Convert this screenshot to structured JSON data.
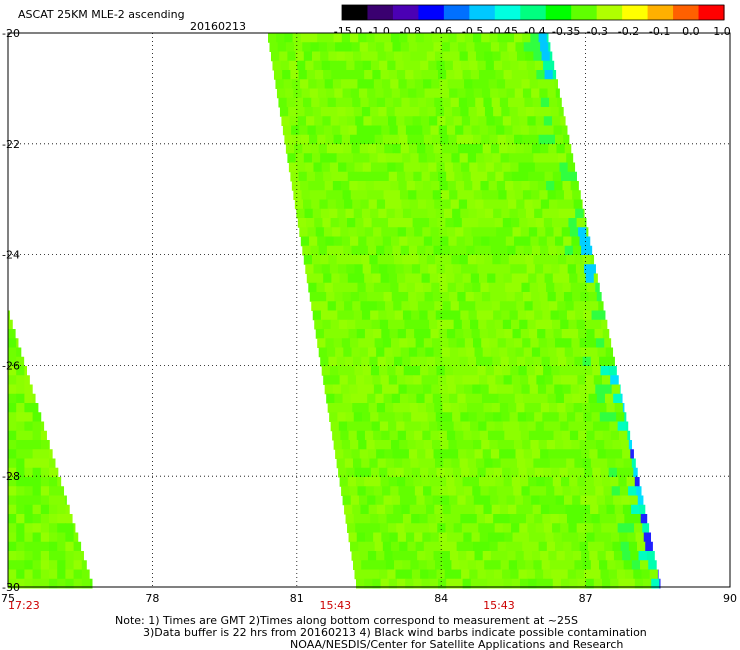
{
  "header": {
    "title": "ASCAT 25KM MLE-2 ascending",
    "date": "20160213"
  },
  "colorbar": {
    "labels": [
      "-15.0",
      "-1.0",
      "-0.8",
      "-0.6",
      "-0.5",
      "-0.45",
      "-0.4",
      "-0.35",
      "-0.3",
      "-0.2",
      "-0.1",
      "0.0",
      "1.0"
    ],
    "colors": [
      "#000000",
      "#3a0070",
      "#4b00b4",
      "#0000ff",
      "#0070ff",
      "#00c8ff",
      "#00ffe0",
      "#00ff80",
      "#00ff00",
      "#60ff00",
      "#b0ff00",
      "#ffff00",
      "#ffb000",
      "#ff6000",
      "#ff0000"
    ]
  },
  "map": {
    "lon_ticks": [
      "75",
      "78",
      "81",
      "84",
      "87",
      "90"
    ],
    "lat_ticks": [
      "-20",
      "-22",
      "-24",
      "-26",
      "-28",
      "-30"
    ],
    "lon_range": [
      75,
      90
    ],
    "lat_range": [
      -20,
      -30
    ],
    "swath_times": [
      {
        "text": "17:23",
        "lon": 75.0
      },
      {
        "text": "15:43",
        "lon": 81.8
      },
      {
        "text": "15:43",
        "lon": 85.2
      }
    ]
  },
  "notes": {
    "line1": "Note: 1) Times are GMT 2)Times along bottom correspond to measurement at ~25S",
    "line2": "3)Data buffer is 22 hrs from 20160213 4) Black wind barbs indicate possible contamination",
    "line3": "NOAA/NESDIS/Center for Satellite Applications and Research"
  }
}
